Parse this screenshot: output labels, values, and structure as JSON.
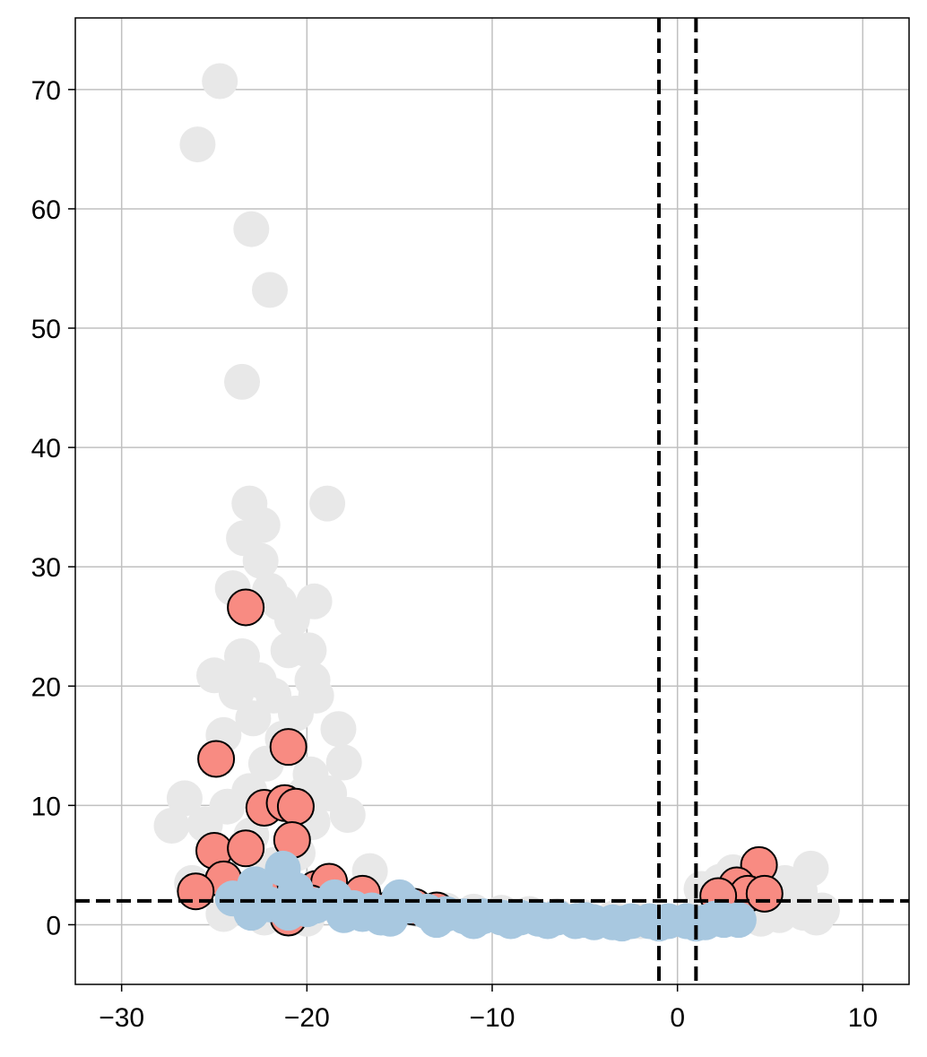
{
  "chart_data": {
    "type": "scatter",
    "title": "",
    "xlabel": "",
    "ylabel": "",
    "xlim": [
      -32.5,
      12.5
    ],
    "ylim": [
      -5,
      76
    ],
    "xticks": [
      -30,
      -20,
      -10,
      0,
      10
    ],
    "yticks": [
      0,
      10,
      20,
      30,
      40,
      50,
      60,
      70
    ],
    "xtick_labels": [
      "−30",
      "−20",
      "−10",
      "0",
      "10"
    ],
    "ytick_labels": [
      "0",
      "10",
      "20",
      "30",
      "40",
      "50",
      "60",
      "70"
    ],
    "grid": true,
    "legend": "none",
    "threshold_lines": {
      "horizontal_y": 2.0,
      "vertical_x": [
        -1.0,
        1.0
      ],
      "style": "dashed",
      "color": "#000000"
    },
    "colors": {
      "not_significant": "#e8e8e8",
      "significant": "#f88b82",
      "significant_edge": "#000000",
      "low_significance": "#a8c8e0"
    },
    "series": [
      {
        "color_key": "not_significant",
        "points": [
          [
            -24.7,
            70.7
          ],
          [
            -25.9,
            65.4
          ],
          [
            -23.0,
            58.3
          ],
          [
            -22.0,
            53.2
          ],
          [
            -23.5,
            45.5
          ],
          [
            -23.1,
            35.3
          ],
          [
            -18.9,
            35.3
          ],
          [
            -22.4,
            33.5
          ],
          [
            -23.4,
            32.4
          ],
          [
            -22.5,
            30.5
          ],
          [
            -24.0,
            28.2
          ],
          [
            -22.0,
            28.0
          ],
          [
            -21.5,
            27.0
          ],
          [
            -19.6,
            27.1
          ],
          [
            -20.8,
            25.6
          ],
          [
            -23.5,
            22.5
          ],
          [
            -21.0,
            23.0
          ],
          [
            -19.9,
            23.0
          ],
          [
            -23.3,
            21.0
          ],
          [
            -25.0,
            20.9
          ],
          [
            -22.6,
            20.5
          ],
          [
            -19.7,
            20.5
          ],
          [
            -23.8,
            19.5
          ],
          [
            -21.8,
            19.2
          ],
          [
            -19.5,
            19.2
          ],
          [
            -22.9,
            17.3
          ],
          [
            -20.6,
            17.7
          ],
          [
            -18.3,
            16.4
          ],
          [
            -24.5,
            15.9
          ],
          [
            -21.3,
            15.6
          ],
          [
            -18.0,
            13.6
          ],
          [
            -22.2,
            13.5
          ],
          [
            -19.8,
            12.6
          ],
          [
            -26.6,
            10.6
          ],
          [
            -23.1,
            11.2
          ],
          [
            -20.1,
            11.0
          ],
          [
            -18.8,
            11.0
          ],
          [
            -24.3,
            9.9
          ],
          [
            -27.3,
            8.3
          ],
          [
            -17.8,
            9.2
          ],
          [
            -19.7,
            8.6
          ],
          [
            -25.5,
            8.4
          ],
          [
            -23.0,
            7.5
          ],
          [
            -20.5,
            6.0
          ],
          [
            -16.6,
            4.5
          ],
          [
            -21.8,
            5.0
          ],
          [
            -26.2,
            3.5
          ],
          [
            -24.0,
            2.8
          ],
          [
            -22.0,
            2.2
          ],
          [
            -20.0,
            1.8
          ],
          [
            -18.5,
            1.6
          ],
          [
            -17.0,
            1.6
          ],
          [
            -15.4,
            1.6
          ],
          [
            -14.0,
            1.3
          ],
          [
            -12.5,
            1.2
          ],
          [
            -11.0,
            1.1
          ],
          [
            -9.5,
            1.0
          ],
          [
            -8.0,
            0.9
          ],
          [
            -6.5,
            0.7
          ],
          [
            -5.0,
            0.6
          ],
          [
            -3.5,
            0.5
          ],
          [
            -2.0,
            0.3
          ],
          [
            -24.5,
            0.9
          ],
          [
            -22.3,
            0.6
          ],
          [
            -20.0,
            0.5
          ],
          [
            1.3,
            3.0
          ],
          [
            2.3,
            3.6
          ],
          [
            3.0,
            4.4
          ],
          [
            1.8,
            2.2
          ],
          [
            4.0,
            1.8
          ],
          [
            5.2,
            2.3
          ],
          [
            5.8,
            3.5
          ],
          [
            6.3,
            1.8
          ],
          [
            7.2,
            4.7
          ],
          [
            6.6,
            2.8
          ],
          [
            7.8,
            1.2
          ],
          [
            6.8,
            1.0
          ],
          [
            1.2,
            1.3
          ],
          [
            2.8,
            1.0
          ],
          [
            5.5,
            0.8
          ],
          [
            7.5,
            0.6
          ],
          [
            4.5,
            0.5
          ]
        ]
      },
      {
        "color_key": "significant",
        "points": [
          [
            -23.3,
            26.6
          ],
          [
            -21.0,
            14.9
          ],
          [
            -24.9,
            13.9
          ],
          [
            -22.3,
            9.8
          ],
          [
            -21.2,
            10.2
          ],
          [
            -20.6,
            9.9
          ],
          [
            -20.8,
            7.1
          ],
          [
            -25.0,
            6.2
          ],
          [
            -23.3,
            6.4
          ],
          [
            -24.5,
            3.8
          ],
          [
            -26.0,
            2.8
          ],
          [
            -22.5,
            2.8
          ],
          [
            -19.5,
            3.0
          ],
          [
            -18.8,
            3.6
          ],
          [
            -17.0,
            2.6
          ],
          [
            -15.5,
            1.3
          ],
          [
            -14.2,
            1.5
          ],
          [
            -13.0,
            1.2
          ],
          [
            -21.0,
            0.6
          ],
          [
            -19.8,
            1.8
          ],
          [
            4.4,
            5.0
          ],
          [
            3.2,
            3.3
          ],
          [
            3.8,
            2.6
          ],
          [
            4.7,
            2.6
          ],
          [
            2.2,
            2.4
          ]
        ]
      },
      {
        "color_key": "low_significance",
        "points": [
          [
            -21.3,
            4.7
          ],
          [
            -22.8,
            3.4
          ],
          [
            -20.6,
            2.9
          ],
          [
            -24.0,
            2.2
          ],
          [
            -22.0,
            1.7
          ],
          [
            -19.5,
            1.6
          ],
          [
            -18.5,
            2.3
          ],
          [
            -17.5,
            1.4
          ],
          [
            -16.5,
            1.2
          ],
          [
            -15.0,
            2.3
          ],
          [
            -14.5,
            1.6
          ],
          [
            -13.5,
            1.1
          ],
          [
            -12.5,
            0.9
          ],
          [
            -11.5,
            0.7
          ],
          [
            -10.5,
            0.7
          ],
          [
            -9.5,
            0.6
          ],
          [
            -8.5,
            0.6
          ],
          [
            -7.5,
            0.5
          ],
          [
            -6.5,
            0.6
          ],
          [
            -5.5,
            0.3
          ],
          [
            -4.5,
            0.2
          ],
          [
            -3.5,
            0.2
          ],
          [
            -2.5,
            0.3
          ],
          [
            -1.5,
            0.3
          ],
          [
            -0.5,
            0.3
          ],
          [
            0.5,
            0.3
          ],
          [
            1.5,
            0.2
          ],
          [
            2.5,
            0.4
          ],
          [
            3.3,
            0.4
          ],
          [
            -23.0,
            1.0
          ],
          [
            -21.0,
            1.0
          ],
          [
            -20.0,
            1.3
          ],
          [
            -18.0,
            0.8
          ],
          [
            -17.0,
            0.9
          ],
          [
            -16.0,
            0.6
          ],
          [
            -15.5,
            0.5
          ],
          [
            -13.0,
            0.4
          ],
          [
            -11.0,
            0.3
          ],
          [
            -9.0,
            0.3
          ],
          [
            -7.0,
            0.3
          ],
          [
            -5.0,
            0.4
          ],
          [
            -3.0,
            0.1
          ],
          [
            -1.0,
            0.1
          ],
          [
            1.0,
            0.1
          ],
          [
            2.0,
            0.5
          ]
        ]
      }
    ]
  }
}
